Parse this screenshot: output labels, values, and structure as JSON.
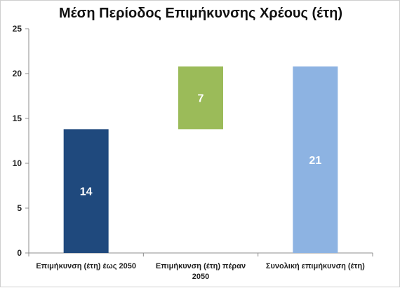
{
  "chart_data": {
    "type": "bar",
    "subtype": "waterfall",
    "title": "Μέση Περίοδος Επιμήκυνσης Χρέους (έτη)",
    "xlabel": "",
    "ylabel": "",
    "ylim": [
      0,
      25
    ],
    "yticks": [
      0,
      5,
      10,
      15,
      20,
      25
    ],
    "grid": false,
    "legend": "none",
    "categories": [
      [
        "Επιμήκυνση (έτη) έως 2050"
      ],
      [
        "Επιμήκυνση (έτη) πέραν",
        "2050"
      ],
      [
        "Συνολική επιμήκυνση (έτη)"
      ]
    ],
    "bars": [
      {
        "base": 0,
        "top": 13.8,
        "value": 13.8,
        "label": "14",
        "color": "#1f497d"
      },
      {
        "base": 13.8,
        "top": 20.8,
        "value": 7,
        "label": "7",
        "color": "#9bbb59"
      },
      {
        "base": 0,
        "top": 20.8,
        "value": 20.8,
        "label": "21",
        "color": "#8db3e2"
      }
    ]
  }
}
